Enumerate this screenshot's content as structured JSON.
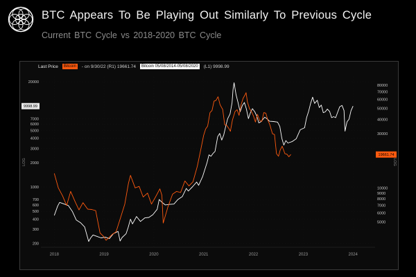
{
  "header": {
    "title": "BTC Appears To Be Playing Out Similarly To Previous Cycle",
    "subtitle": "Current BTC Cycle vs 2018-2020 BTC Cycle"
  },
  "colors": {
    "accent_orange": "#ff5a0f",
    "series_white": "#ffffff",
    "background": "#000000",
    "panel_background": "#0b0b0b",
    "muted_text": "#8c8c8c"
  },
  "chart": {
    "legend": {
      "last_price": "Last Price",
      "series1_chip": "Bitcoin",
      "series1_rest": "- on 9/30/22 (R1) 19661.74",
      "series2_chip": "Bitcoin 05/08/2014-05/08/2020",
      "series2_rest": "(L1) 9998.99"
    },
    "callouts": {
      "left": {
        "text": "9998.99",
        "value": 9998.99
      },
      "right": {
        "text": "19661.74",
        "value": 19661.74
      }
    },
    "log_label": "LOG"
  },
  "chart_data": {
    "type": "line",
    "title": "Current BTC Cycle vs 2018-2020 BTC Cycle",
    "x_ticks": [
      {
        "label": "2018",
        "x": 4.0
      },
      {
        "label": "2019",
        "x": 18.9
      },
      {
        "label": "2020",
        "x": 33.8
      },
      {
        "label": "2021",
        "x": 48.7
      },
      {
        "label": "2022",
        "x": 63.6
      },
      {
        "label": "2023",
        "x": 78.5
      },
      {
        "label": "2024",
        "x": 93.4
      }
    ],
    "left_axis": {
      "scale": "log",
      "min": 180,
      "max": 23000,
      "ticks": [
        20000,
        7000,
        6000,
        5000,
        4000,
        3000,
        2000,
        1000,
        700,
        600,
        500,
        400,
        300,
        200
      ]
    },
    "right_axis": {
      "scale": "log",
      "min": 3000,
      "max": 95000,
      "ticks": [
        80000,
        70000,
        60000,
        50000,
        40000,
        30000,
        20000,
        10000,
        9000,
        8000,
        7000,
        6000,
        5000
      ]
    },
    "series": [
      {
        "name": "Bitcoin - on 9/30/22 (R1) 19661.74",
        "axis": "right",
        "color": "#ff5a0f",
        "last_value": 19661.74,
        "points": [
          [
            4.0,
            13400
          ],
          [
            5.2,
            10000
          ],
          [
            6.5,
            8500
          ],
          [
            7.7,
            7000
          ],
          [
            8.9,
            9300
          ],
          [
            10.3,
            7500
          ],
          [
            11.4,
            6400
          ],
          [
            12.6,
            7400
          ],
          [
            14.0,
            6500
          ],
          [
            15.2,
            6450
          ],
          [
            16.4,
            6300
          ],
          [
            17.7,
            4000
          ],
          [
            18.9,
            3700
          ],
          [
            19.5,
            3450
          ],
          [
            21.4,
            3900
          ],
          [
            22.5,
            4100
          ],
          [
            23.7,
            5300
          ],
          [
            25.1,
            7200
          ],
          [
            26.2,
            11000
          ],
          [
            26.8,
            12900
          ],
          [
            28.2,
            10000
          ],
          [
            29.4,
            10300
          ],
          [
            30.6,
            8300
          ],
          [
            31.9,
            9000
          ],
          [
            33.1,
            7200
          ],
          [
            34.3,
            8300
          ],
          [
            35.6,
            9800
          ],
          [
            36.2,
            8600
          ],
          [
            36.6,
            4900
          ],
          [
            38.0,
            6800
          ],
          [
            39.4,
            8800
          ],
          [
            40.6,
            9300
          ],
          [
            41.8,
            9100
          ],
          [
            43.1,
            11500
          ],
          [
            44.3,
            10400
          ],
          [
            45.5,
            11300
          ],
          [
            46.8,
            15500
          ],
          [
            48.0,
            23000
          ],
          [
            48.7,
            29000
          ],
          [
            49.3,
            33000
          ],
          [
            49.9,
            35000
          ],
          [
            50.6,
            46000
          ],
          [
            51.2,
            48000
          ],
          [
            51.8,
            58000
          ],
          [
            52.4,
            59000
          ],
          [
            53.0,
            63500
          ],
          [
            53.6,
            54000
          ],
          [
            54.4,
            49000
          ],
          [
            55.0,
            36000
          ],
          [
            55.6,
            35500
          ],
          [
            56.2,
            33500
          ],
          [
            56.7,
            31500
          ],
          [
            57.3,
            39500
          ],
          [
            58.1,
            47000
          ],
          [
            58.7,
            48800
          ],
          [
            59.3,
            43500
          ],
          [
            59.9,
            54000
          ],
          [
            60.5,
            61500
          ],
          [
            61.1,
            66000
          ],
          [
            61.4,
            69000
          ],
          [
            61.8,
            57000
          ],
          [
            62.4,
            50000
          ],
          [
            63.0,
            47000
          ],
          [
            63.6,
            43000
          ],
          [
            64.2,
            38000
          ],
          [
            64.8,
            44500
          ],
          [
            65.5,
            39000
          ],
          [
            66.1,
            38500
          ],
          [
            66.7,
            46000
          ],
          [
            67.3,
            45500
          ],
          [
            67.9,
            39500
          ],
          [
            68.5,
            36000
          ],
          [
            69.3,
            30000
          ],
          [
            69.9,
            29500
          ],
          [
            70.5,
            20000
          ],
          [
            71.1,
            19000
          ],
          [
            71.6,
            21500
          ],
          [
            72.2,
            23300
          ],
          [
            73.0,
            20000
          ],
          [
            73.6,
            19800
          ],
          [
            74.2,
            18800
          ],
          [
            74.8,
            19662
          ]
        ]
      },
      {
        "name": "Bitcoin 05/08/2014-05/08/2020 (L1) 9998.99",
        "axis": "left",
        "color": "#ffffff",
        "last_value": 9998.99,
        "points": [
          [
            4.0,
            445
          ],
          [
            5.0,
            580
          ],
          [
            5.6,
            645
          ],
          [
            6.8,
            620
          ],
          [
            8.2,
            590
          ],
          [
            9.4,
            500
          ],
          [
            10.6,
            390
          ],
          [
            11.9,
            360
          ],
          [
            13.1,
            320
          ],
          [
            14.3,
            212
          ],
          [
            14.9,
            235
          ],
          [
            15.6,
            255
          ],
          [
            16.8,
            245
          ],
          [
            18.0,
            235
          ],
          [
            19.3,
            240
          ],
          [
            20.5,
            230
          ],
          [
            21.7,
            265
          ],
          [
            23.1,
            282
          ],
          [
            23.7,
            215
          ],
          [
            24.3,
            237
          ],
          [
            25.5,
            265
          ],
          [
            26.1,
            315
          ],
          [
            26.8,
            400
          ],
          [
            27.4,
            350
          ],
          [
            28.6,
            432
          ],
          [
            29.8,
            375
          ],
          [
            31.1,
            415
          ],
          [
            32.3,
            420
          ],
          [
            33.5,
            455
          ],
          [
            34.8,
            530
          ],
          [
            35.4,
            700
          ],
          [
            36.0,
            660
          ],
          [
            37.2,
            600
          ],
          [
            38.6,
            610
          ],
          [
            39.8,
            615
          ],
          [
            41.0,
            700
          ],
          [
            42.3,
            760
          ],
          [
            43.5,
            960
          ],
          [
            44.1,
            890
          ],
          [
            45.4,
            1010
          ],
          [
            46.6,
            1150
          ],
          [
            47.2,
            1050
          ],
          [
            48.4,
            1350
          ],
          [
            49.7,
            2000
          ],
          [
            50.3,
            2500
          ],
          [
            50.9,
            2400
          ],
          [
            51.5,
            2600
          ],
          [
            52.1,
            2750
          ],
          [
            52.9,
            4200
          ],
          [
            53.5,
            4600
          ],
          [
            54.1,
            3800
          ],
          [
            54.7,
            4400
          ],
          [
            55.3,
            5600
          ],
          [
            55.9,
            7000
          ],
          [
            56.6,
            8000
          ],
          [
            57.2,
            11000
          ],
          [
            57.5,
            16000
          ],
          [
            57.8,
            19500
          ],
          [
            58.4,
            13800
          ],
          [
            59.0,
            11000
          ],
          [
            59.6,
            8500
          ],
          [
            60.3,
            10200
          ],
          [
            60.9,
            11100
          ],
          [
            61.5,
            9200
          ],
          [
            62.1,
            7000
          ],
          [
            62.7,
            8300
          ],
          [
            63.3,
            9300
          ],
          [
            64.0,
            8500
          ],
          [
            64.6,
            7500
          ],
          [
            65.2,
            6200
          ],
          [
            65.8,
            6400
          ],
          [
            67.0,
            7300
          ],
          [
            67.8,
            6900
          ],
          [
            68.4,
            6500
          ],
          [
            69.6,
            6450
          ],
          [
            70.8,
            6350
          ],
          [
            71.5,
            5600
          ],
          [
            72.1,
            4000
          ],
          [
            72.7,
            3300
          ],
          [
            73.3,
            3750
          ],
          [
            73.9,
            3500
          ],
          [
            75.2,
            3650
          ],
          [
            76.4,
            3950
          ],
          [
            77.6,
            5100
          ],
          [
            78.9,
            5400
          ],
          [
            79.5,
            7200
          ],
          [
            80.1,
            8600
          ],
          [
            80.7,
            10800
          ],
          [
            81.3,
            12900
          ],
          [
            81.9,
            10800
          ],
          [
            82.7,
            11800
          ],
          [
            83.3,
            9600
          ],
          [
            83.9,
            10300
          ],
          [
            84.5,
            8300
          ],
          [
            85.1,
            8500
          ],
          [
            85.7,
            9200
          ],
          [
            86.4,
            8600
          ],
          [
            87.0,
            7200
          ],
          [
            87.6,
            7400
          ],
          [
            88.2,
            7200
          ],
          [
            88.8,
            8400
          ],
          [
            89.4,
            9800
          ],
          [
            90.1,
            10200
          ],
          [
            90.7,
            8800
          ],
          [
            91.0,
            4900
          ],
          [
            91.6,
            6400
          ],
          [
            92.2,
            6900
          ],
          [
            92.8,
            8800
          ],
          [
            93.4,
            9999
          ]
        ]
      }
    ]
  }
}
